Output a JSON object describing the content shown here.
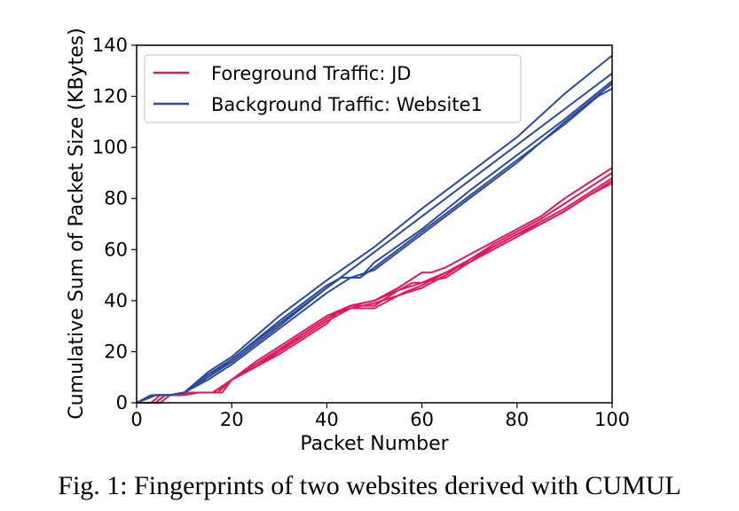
{
  "caption": "Fig. 1: Fingerprints of two websites derived with CUMUL",
  "chart_data": {
    "type": "line",
    "title": "",
    "xlabel": "Packet Number",
    "ylabel": "Cumulative Sum of Packet Size (KBytes)",
    "xlim": [
      0,
      100
    ],
    "ylim": [
      0,
      140
    ],
    "xticks": [
      0,
      20,
      40,
      60,
      80,
      100
    ],
    "yticks": [
      0,
      20,
      40,
      60,
      80,
      100,
      120,
      140
    ],
    "grid": false,
    "legend_position": "top-left",
    "legend": [
      {
        "label": "Foreground Traffic: JD",
        "color": "#e0195e"
      },
      {
        "label": "Background Traffic: Website1",
        "color": "#2b4a9a"
      }
    ],
    "series": [
      {
        "group": 0,
        "x": [
          0,
          4,
          6,
          8,
          10,
          17,
          20,
          25,
          30,
          35,
          40,
          45,
          50,
          55,
          60,
          65,
          70,
          75,
          80,
          85,
          90,
          95,
          100
        ],
        "y": [
          0,
          0,
          3,
          3,
          4,
          4,
          9,
          14,
          20,
          26,
          32,
          37,
          39,
          42,
          45,
          50,
          56,
          61,
          66,
          70,
          75,
          81,
          86
        ]
      },
      {
        "group": 0,
        "x": [
          0,
          3,
          5,
          8,
          11,
          16,
          20,
          25,
          30,
          35,
          40,
          45,
          50,
          55,
          60,
          65,
          70,
          75,
          80,
          85,
          90,
          95,
          100
        ],
        "y": [
          0,
          0,
          3,
          3,
          4,
          4,
          9,
          15,
          21,
          27,
          33,
          38,
          38,
          44,
          47,
          49,
          55,
          60,
          65,
          70,
          75,
          81,
          87
        ]
      },
      {
        "group": 0,
        "x": [
          0,
          4,
          6,
          9,
          12,
          17,
          20,
          25,
          30,
          35,
          40,
          42,
          45,
          50,
          56,
          60,
          65,
          70,
          75,
          80,
          85,
          90,
          95,
          100
        ],
        "y": [
          0,
          0,
          3,
          3,
          4,
          4,
          9,
          14,
          19,
          25,
          31,
          35,
          37,
          37,
          43,
          46,
          51,
          55,
          61,
          66,
          71,
          76,
          82,
          88
        ]
      },
      {
        "group": 0,
        "x": [
          0,
          5,
          7,
          10,
          13,
          18,
          20,
          25,
          30,
          35,
          40,
          45,
          50,
          55,
          58,
          60,
          65,
          70,
          75,
          80,
          85,
          90,
          95,
          100
        ],
        "y": [
          0,
          0,
          3,
          3,
          4,
          4,
          9,
          16,
          22,
          28,
          34,
          38,
          40,
          44,
          47,
          47,
          51,
          56,
          62,
          67,
          72,
          78,
          84,
          90
        ]
      },
      {
        "group": 0,
        "x": [
          0,
          4,
          6,
          9,
          12,
          16,
          20,
          25,
          30,
          35,
          40,
          45,
          50,
          55,
          60,
          62,
          65,
          70,
          75,
          80,
          85,
          90,
          95,
          100
        ],
        "y": [
          0,
          0,
          3,
          3,
          4,
          4,
          9,
          15,
          20,
          27,
          33,
          38,
          40,
          45,
          51,
          51,
          53,
          58,
          63,
          68,
          73,
          80,
          86,
          92
        ]
      },
      {
        "group": 1,
        "x": [
          0,
          4,
          7,
          10,
          15,
          20,
          30,
          40,
          50,
          60,
          70,
          80,
          90,
          100
        ],
        "y": [
          0,
          3,
          3,
          4,
          10,
          17,
          31,
          45,
          59,
          73,
          87,
          101,
          115,
          129
        ]
      },
      {
        "group": 1,
        "x": [
          0,
          4,
          7,
          10,
          15,
          20,
          30,
          40,
          50,
          60,
          70,
          80,
          90,
          100
        ],
        "y": [
          0,
          3,
          3,
          4,
          12,
          18,
          34,
          48,
          61,
          76,
          90,
          104,
          121,
          136
        ]
      },
      {
        "group": 1,
        "x": [
          0,
          3,
          7,
          10,
          15,
          20,
          30,
          40,
          43,
          47,
          50,
          60,
          70,
          80,
          90,
          100
        ],
        "y": [
          0,
          3,
          3,
          4,
          11,
          17,
          32,
          46,
          49,
          49,
          55,
          68,
          83,
          97,
          111,
          126
        ]
      },
      {
        "group": 1,
        "x": [
          0,
          4,
          7,
          10,
          15,
          20,
          30,
          40,
          43,
          47,
          50,
          60,
          70,
          80,
          90,
          97,
          100
        ],
        "y": [
          0,
          3,
          3,
          4,
          10,
          16,
          30,
          45,
          49,
          49,
          53,
          67,
          81,
          95,
          109,
          120,
          123
        ]
      },
      {
        "group": 1,
        "x": [
          0,
          4,
          7,
          10,
          15,
          20,
          30,
          40,
          45,
          50,
          60,
          70,
          80,
          90,
          100
        ],
        "y": [
          0,
          3,
          3,
          4,
          9,
          15,
          29,
          43,
          49,
          52,
          66,
          80,
          94,
          110,
          125
        ]
      }
    ]
  }
}
